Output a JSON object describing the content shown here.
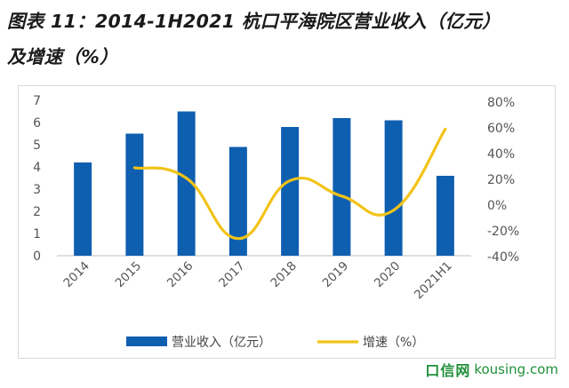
{
  "title": {
    "line1": "图表 11：2014-1H2021 杭口平海院区营业收入（亿元）",
    "line2": "及增速（%）"
  },
  "watermark": {
    "logo": "口信网",
    "site": "kousing.com",
    "color": "#1f8f3a"
  },
  "chart_data": {
    "type": "bar",
    "categories": [
      "2014",
      "2015",
      "2016",
      "2017",
      "2018",
      "2019",
      "2020",
      "2021H1"
    ],
    "series": [
      {
        "name": "营业收入（亿元）",
        "type": "bar",
        "axis": "left",
        "color": "#0f5fb0",
        "values": [
          4.2,
          5.5,
          6.5,
          4.9,
          5.8,
          6.2,
          6.1,
          3.6
        ]
      },
      {
        "name": "增速（%）",
        "type": "line",
        "axis": "right",
        "color": "#f2c318",
        "values": [
          null,
          29,
          21,
          -26,
          19,
          7,
          -4,
          59
        ]
      }
    ],
    "y_left": {
      "ticks": [
        "0",
        "1",
        "2",
        "3",
        "4",
        "5",
        "6",
        "7"
      ],
      "ylim": [
        0,
        7
      ]
    },
    "y_right": {
      "ticks": [
        "-40%",
        "-20%",
        "0%",
        "20%",
        "40%",
        "60%",
        "80%"
      ],
      "ylim": [
        -40,
        80
      ]
    },
    "grid": false,
    "legend_position": "bottom"
  }
}
